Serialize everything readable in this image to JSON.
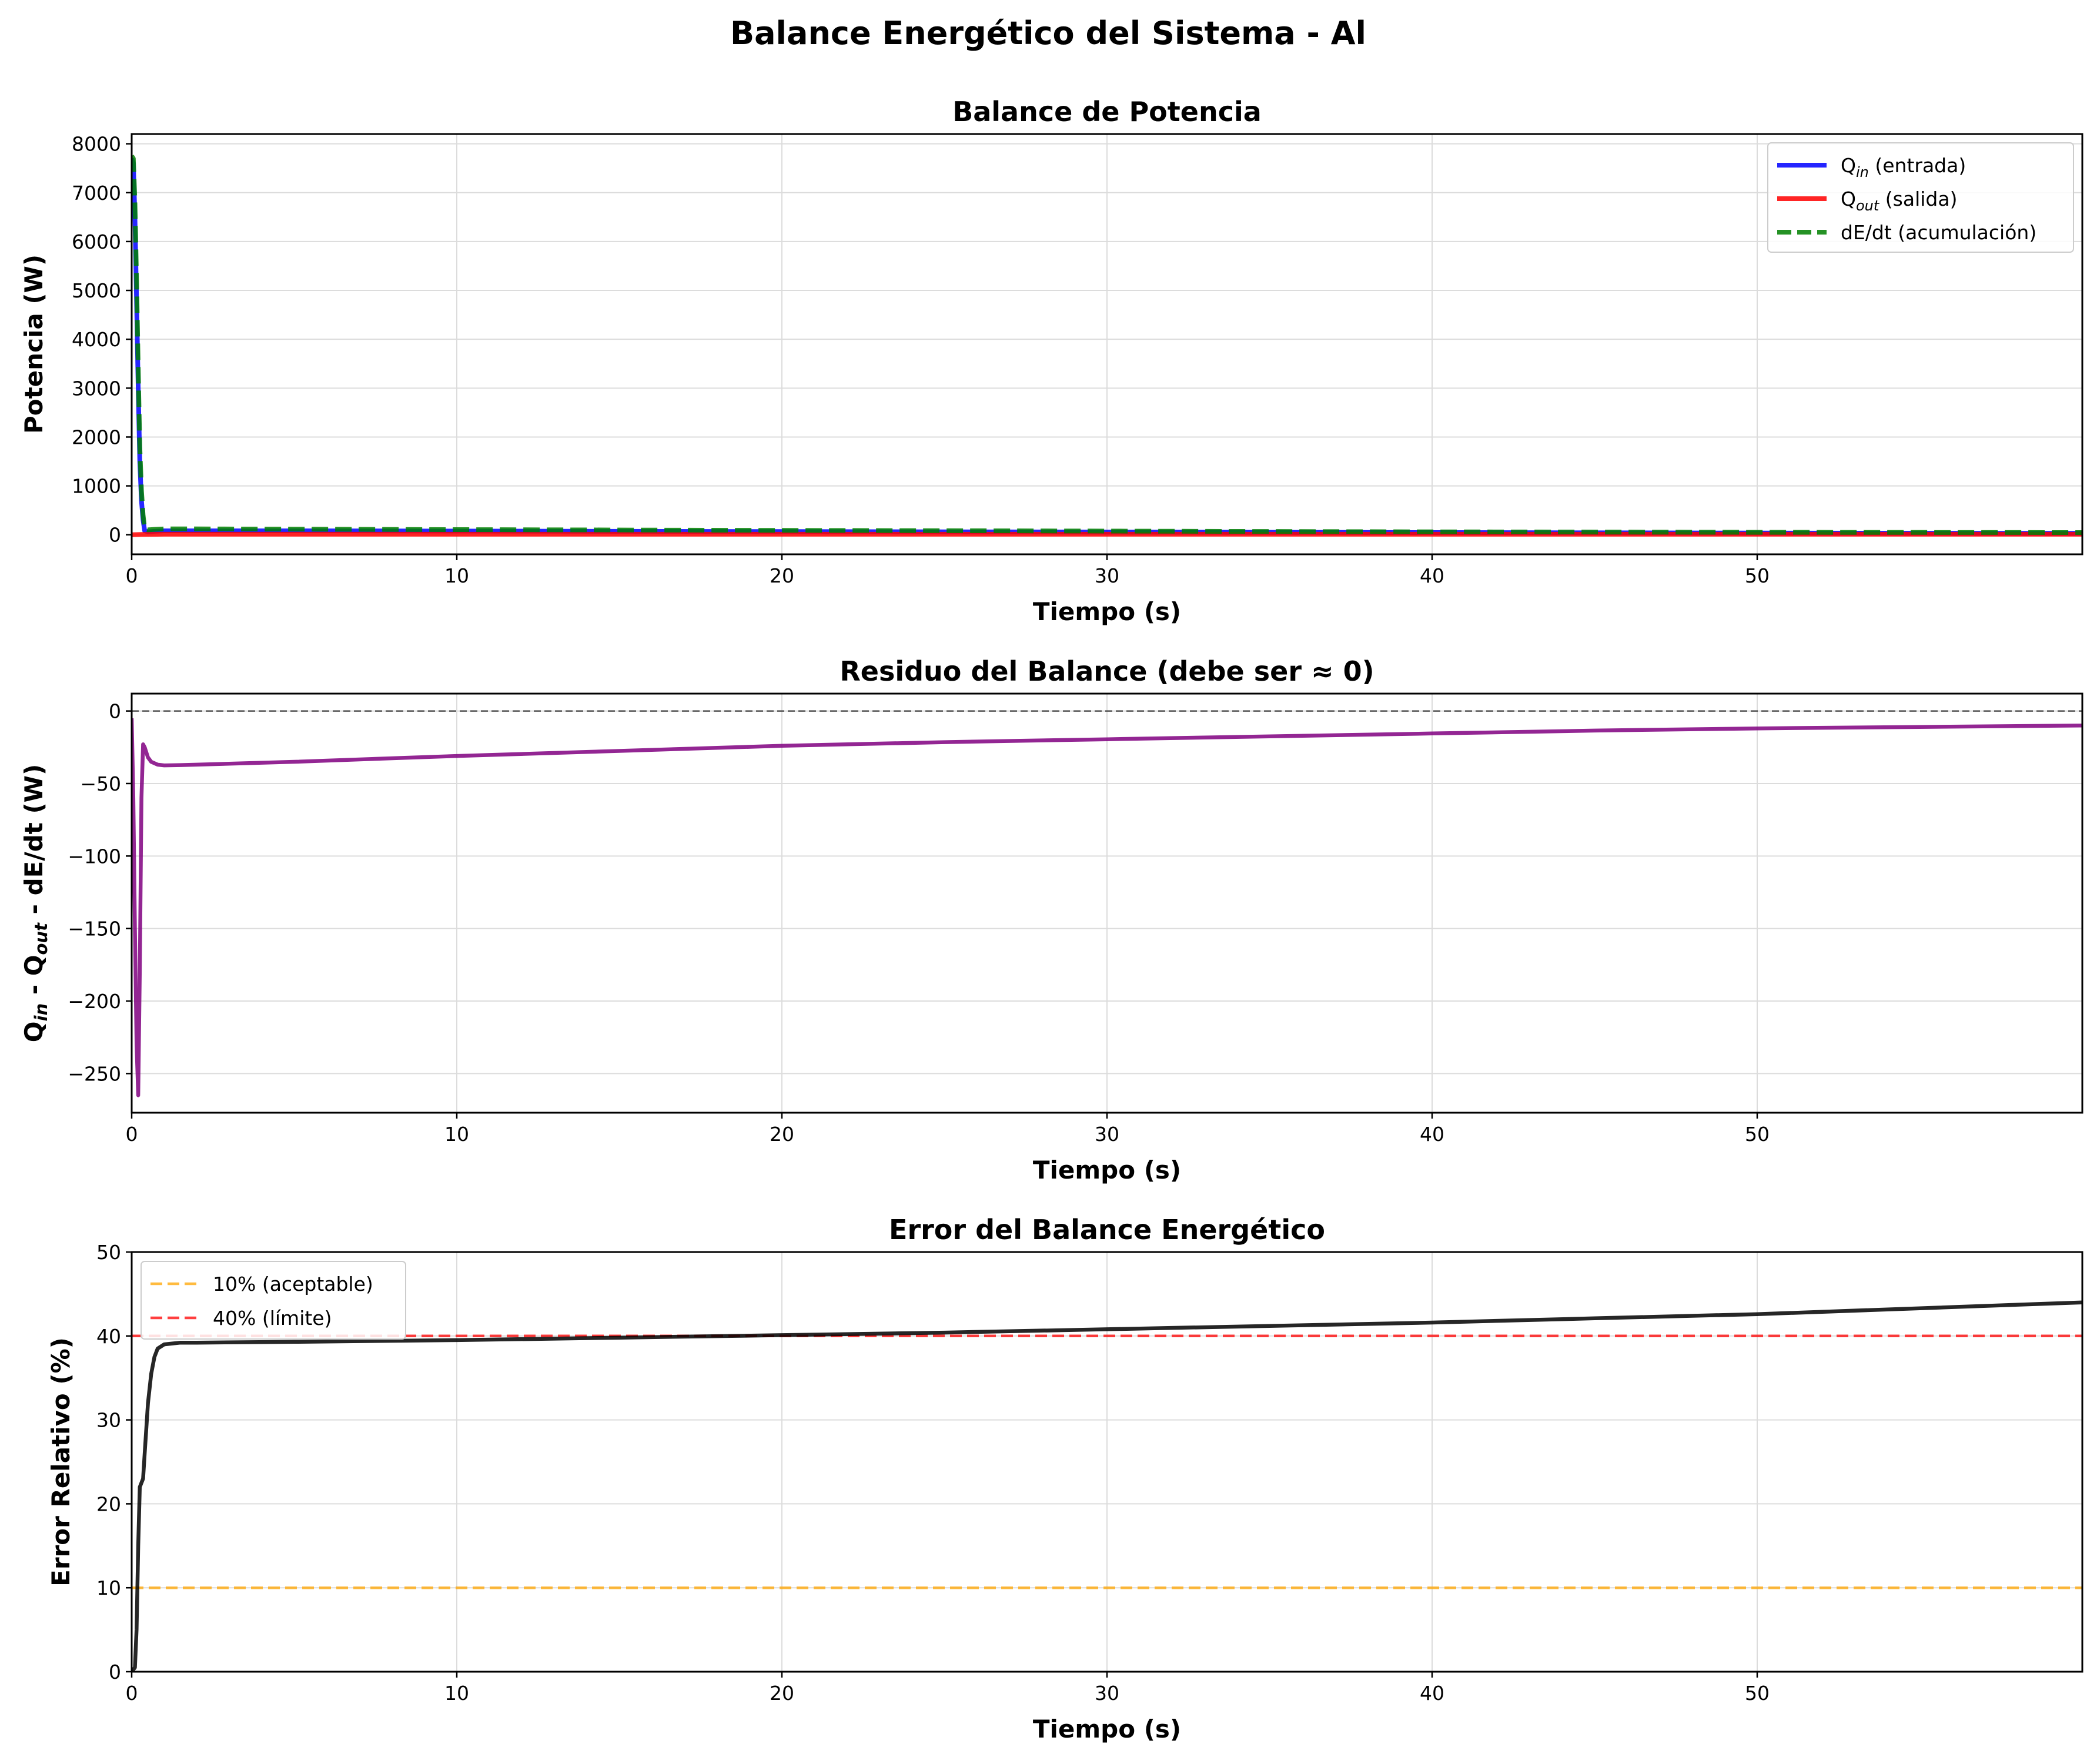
{
  "figure": {
    "suptitle": "Balance Energético del Sistema - Al"
  },
  "chart_data": [
    {
      "type": "line",
      "title": "Balance de Potencia",
      "xlabel": "Tiempo (s)",
      "ylabel": "Potencia (W)",
      "xlim": [
        0,
        60
      ],
      "ylim": [
        -400,
        8200
      ],
      "xticks": [
        "0",
        "10",
        "20",
        "30",
        "40",
        "50"
      ],
      "yticks": [
        "0",
        "1000",
        "2000",
        "3000",
        "4000",
        "5000",
        "6000",
        "7000",
        "8000"
      ],
      "grid": true,
      "legend_position": "top-right",
      "series": [
        {
          "name_main": "Q",
          "name_sub": "in",
          "name_suffix": " (entrada)",
          "color": "#0000ff",
          "style": "solid",
          "x": [
            0,
            0.05,
            0.1,
            0.15,
            0.2,
            0.25,
            0.3,
            0.35,
            0.4,
            0.5,
            0.7,
            1,
            2,
            5,
            10,
            20,
            30,
            40,
            50,
            60
          ],
          "y": [
            7700,
            7600,
            6500,
            4800,
            3000,
            1500,
            700,
            300,
            80,
            60,
            70,
            80,
            80,
            80,
            75,
            65,
            55,
            45,
            35,
            30
          ]
        },
        {
          "name_main": "Q",
          "name_sub": "out",
          "name_suffix": " (salida)",
          "color": "#ff0000",
          "style": "solid",
          "x": [
            0,
            0.3,
            1,
            5,
            10,
            20,
            30,
            40,
            50,
            60
          ],
          "y": [
            0,
            5,
            10,
            10,
            10,
            10,
            10,
            10,
            10,
            10
          ]
        },
        {
          "name_main": "dE/dt (acumulación)",
          "name_sub": "",
          "name_suffix": "",
          "color": "#008000",
          "style": "dashed",
          "x": [
            0,
            0.05,
            0.1,
            0.15,
            0.2,
            0.25,
            0.3,
            0.35,
            0.4,
            0.5,
            0.7,
            1,
            2,
            5,
            10,
            20,
            30,
            40,
            50,
            60
          ],
          "y": [
            7750,
            7700,
            6800,
            5200,
            3400,
            1800,
            900,
            400,
            120,
            100,
            110,
            120,
            120,
            115,
            105,
            90,
            75,
            60,
            50,
            45
          ]
        }
      ]
    },
    {
      "type": "line",
      "title": "Residuo del Balance (debe ser ≈ 0)",
      "xlabel": "Tiempo (s)",
      "ylabel_parts": [
        "Q",
        "in",
        " - Q",
        "out",
        " - dE/dt (W)"
      ],
      "xlim": [
        0,
        60
      ],
      "ylim": [
        -277,
        12
      ],
      "xticks": [
        "0",
        "10",
        "20",
        "30",
        "40",
        "50"
      ],
      "yticks": [
        "0",
        "−50",
        "−100",
        "−150",
        "−200",
        "−250"
      ],
      "grid": true,
      "reference_lines": [
        {
          "y": 0,
          "color": "#333333",
          "style": "dashed"
        }
      ],
      "series": [
        {
          "name": "",
          "color": "#800080",
          "style": "solid",
          "x": [
            0,
            0.05,
            0.1,
            0.15,
            0.2,
            0.25,
            0.3,
            0.35,
            0.4,
            0.5,
            0.6,
            0.8,
            1,
            1.5,
            2,
            5,
            10,
            15,
            20,
            25,
            30,
            35,
            40,
            45,
            50,
            55,
            60
          ],
          "y": [
            -5,
            -60,
            -150,
            -230,
            -265,
            -180,
            -60,
            -23,
            -25,
            -32,
            -35,
            -37,
            -37.5,
            -37.3,
            -37,
            -35,
            -31,
            -27.5,
            -24,
            -21.5,
            -19.5,
            -17.5,
            -15.5,
            -13.5,
            -12,
            -11,
            -10
          ]
        }
      ]
    },
    {
      "type": "line",
      "title": "Error del Balance Energético",
      "xlabel": "Tiempo (s)",
      "ylabel": "Error Relativo (%)",
      "xlim": [
        0,
        60
      ],
      "ylim": [
        0,
        50
      ],
      "xticks": [
        "0",
        "10",
        "20",
        "30",
        "40",
        "50"
      ],
      "yticks": [
        "0",
        "10",
        "20",
        "30",
        "40",
        "50"
      ],
      "grid": true,
      "legend_position": "top-left",
      "reference_lines": [
        {
          "y": 10,
          "label": "10% (aceptable)",
          "color": "#ffa500",
          "style": "dashed"
        },
        {
          "y": 40,
          "label": "40% (límite)",
          "color": "#ff0000",
          "style": "dashed"
        }
      ],
      "series": [
        {
          "name": "",
          "color": "#000000",
          "style": "solid",
          "x": [
            0,
            0.1,
            0.15,
            0.2,
            0.25,
            0.3,
            0.35,
            0.4,
            0.5,
            0.6,
            0.7,
            0.8,
            1,
            1.5,
            2,
            5,
            10,
            15,
            20,
            25,
            30,
            35,
            40,
            45,
            50,
            55,
            60
          ],
          "y": [
            0,
            0.5,
            5,
            15,
            22,
            22.5,
            23,
            26,
            32,
            35.5,
            37.5,
            38.5,
            39,
            39.2,
            39.2,
            39.3,
            39.5,
            39.8,
            40.1,
            40.4,
            40.8,
            41.2,
            41.6,
            42.1,
            42.6,
            43.3,
            44
          ]
        }
      ]
    }
  ]
}
